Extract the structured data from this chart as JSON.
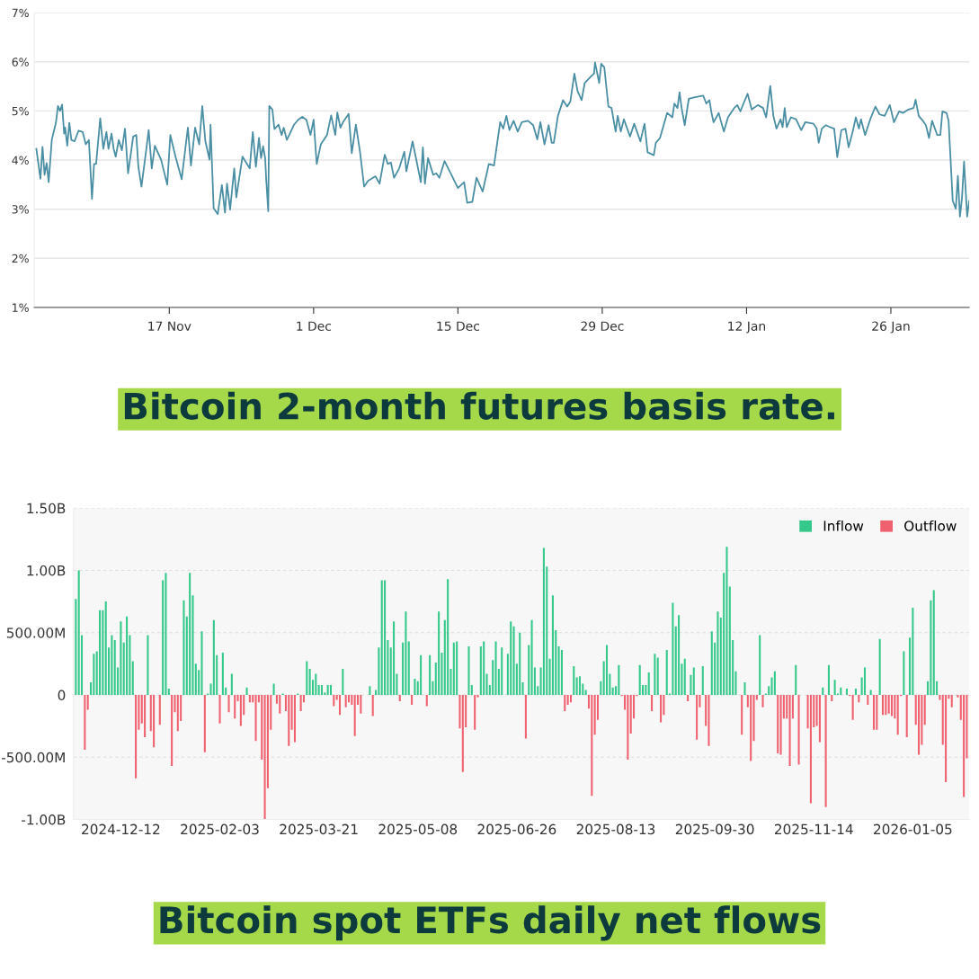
{
  "chart_data": [
    {
      "type": "line",
      "title": "Bitcoin 2-month futures basis rate.",
      "xlim": [
        "2025-11-03T21:36",
        "2026-02-02T14:24"
      ],
      "ylim": [
        1,
        7
      ],
      "xticks": [
        {
          "value": "2025-11-17",
          "label": "17 Nov"
        },
        {
          "value": "2025-12-01",
          "label": "1 Dec"
        },
        {
          "value": "2025-12-15",
          "label": "15 Dec"
        },
        {
          "value": "2025-12-29",
          "label": "29 Dec"
        },
        {
          "value": "2026-01-12",
          "label": "12 Jan"
        },
        {
          "value": "2026-01-26",
          "label": "26 Jan"
        }
      ],
      "yticks": [
        {
          "value": 1,
          "label": "1%"
        },
        {
          "value": 2,
          "label": "2%"
        },
        {
          "value": 3,
          "label": "3%"
        },
        {
          "value": 4,
          "label": "4%"
        },
        {
          "value": 5,
          "label": "5%"
        },
        {
          "value": 6,
          "label": "6%"
        },
        {
          "value": 7,
          "label": "7%"
        }
      ],
      "grid": "y",
      "line_style": "solid",
      "marker": "none",
      "series": [
        {
          "color": "#4a8fa3",
          "x": [
            "2025-11-04T02:24",
            "2025-11-04T12:00",
            "2025-11-04T16:48",
            "2025-11-04T21:36",
            "2025-11-05T02:24",
            "2025-11-05T07:12",
            "2025-11-05T14:24",
            "2025-11-06T00:00",
            "2025-11-06T04:48",
            "2025-11-06T09:36",
            "2025-11-06T14:24",
            "2025-11-06T19:12",
            "2025-11-06T21:36",
            "2025-11-07T02:24",
            "2025-11-07T07:12",
            "2025-11-07T12:00",
            "2025-11-07T19:12",
            "2025-11-08T04:48",
            "2025-11-08T14:24",
            "2025-11-08T21:36",
            "2025-11-09T04:48",
            "2025-11-09T12:00",
            "2025-11-09T16:48",
            "2025-11-09T21:36",
            "2025-11-10T07:12",
            "2025-11-10T14:24",
            "2025-11-10T21:36",
            "2025-11-11T02:24",
            "2025-11-11T09:36",
            "2025-11-11T14:24",
            "2025-11-11T19:12",
            "2025-11-12T02:24",
            "2025-11-12T09:36",
            "2025-11-12T16:48",
            "2025-11-13T00:00",
            "2025-11-13T12:00",
            "2025-11-13T19:12",
            "2025-11-14T00:00",
            "2025-11-14T07:12",
            "2025-11-14T16:48",
            "2025-11-15T00:00",
            "2025-11-15T07:12",
            "2025-11-15T14:24",
            "2025-11-16T04:48",
            "2025-11-16T19:12",
            "2025-11-17T02:24",
            "2025-11-17T14:24",
            "2025-11-18T04:48",
            "2025-11-18T19:12",
            "2025-11-19T02:24",
            "2025-11-19T12:00",
            "2025-11-19T21:36",
            "2025-11-20T04:48",
            "2025-11-20T12:00",
            "2025-11-20T21:36",
            "2025-11-21T00:00",
            "2025-11-21T07:12",
            "2025-11-21T16:48",
            "2025-11-22T02:24",
            "2025-11-22T09:36",
            "2025-11-22T14:24",
            "2025-11-22T21:36",
            "2025-11-23T07:12",
            "2025-11-23T12:00",
            "2025-11-24T02:24",
            "2025-11-24T19:12",
            "2025-11-25T02:24",
            "2025-11-25T09:36",
            "2025-11-25T16:48",
            "2025-11-25T21:36",
            "2025-11-26T02:24",
            "2025-11-26T07:12",
            "2025-11-26T09:36",
            "2025-11-26T14:24",
            "2025-11-26T16:48",
            "2025-11-27T00:00",
            "2025-11-27T04:48",
            "2025-11-27T14:24",
            "2025-11-27T21:36",
            "2025-11-28T02:24",
            "2025-11-28T09:36",
            "2025-11-28T16:48",
            "2025-11-29T02:24",
            "2025-11-29T12:00",
            "2025-11-29T21:36",
            "2025-11-30T07:12",
            "2025-11-30T16:48",
            "2025-12-01T00:00",
            "2025-12-01T07:12",
            "2025-12-01T16:48",
            "2025-12-02T07:12",
            "2025-12-02T16:48",
            "2025-12-03T02:24",
            "2025-12-03T07:12",
            "2025-12-03T14:24",
            "2025-12-03T21:36",
            "2025-12-04T09:36",
            "2025-12-04T16:48",
            "2025-12-05T02:24",
            "2025-12-05T12:00",
            "2025-12-05T21:36",
            "2025-12-06T07:12",
            "2025-12-07T00:00",
            "2025-12-07T09:36",
            "2025-12-07T21:36",
            "2025-12-08T04:48",
            "2025-12-08T12:00",
            "2025-12-08T19:12",
            "2025-12-09T07:12",
            "2025-12-09T19:12",
            "2025-12-10T00:00",
            "2025-12-10T14:24",
            "2025-12-11T09:36",
            "2025-12-11T14:24",
            "2025-12-11T19:12",
            "2025-12-12T02:24",
            "2025-12-12T14:24",
            "2025-12-12T21:36",
            "2025-12-13T04:48",
            "2025-12-13T16:48",
            "2025-12-14T07:12",
            "2025-12-15T00:00",
            "2025-12-15T14:24",
            "2025-12-15T21:36",
            "2025-12-16T09:36",
            "2025-12-16T19:12",
            "2025-12-17T09:36",
            "2025-12-18T00:00",
            "2025-12-18T12:00",
            "2025-12-19T02:24",
            "2025-12-19T09:36",
            "2025-12-19T16:48",
            "2025-12-20T00:00",
            "2025-12-20T09:36",
            "2025-12-20T19:12",
            "2025-12-21T04:48",
            "2025-12-21T19:12",
            "2025-12-22T07:12",
            "2025-12-22T16:48",
            "2025-12-23T00:00",
            "2025-12-23T09:36",
            "2025-12-23T19:12",
            "2025-12-24T02:24",
            "2025-12-24T07:12",
            "2025-12-24T16:48",
            "2025-12-25T04:48",
            "2025-12-25T14:24",
            "2025-12-25T21:36",
            "2025-12-26T07:12",
            "2025-12-26T14:24",
            "2025-12-27T00:00",
            "2025-12-27T07:12",
            "2025-12-27T21:36",
            "2025-12-28T04:48",
            "2025-12-28T07:12",
            "2025-12-28T16:48",
            "2025-12-28T21:36",
            "2025-12-29T04:48",
            "2025-12-29T14:24",
            "2025-12-29T21:36",
            "2025-12-30T07:12",
            "2025-12-30T12:00",
            "2025-12-30T19:12",
            "2025-12-31T02:24",
            "2025-12-31T16:48",
            "2026-01-01T02:24",
            "2026-01-01T16:48",
            "2026-01-02T02:24",
            "2026-01-02T09:36",
            "2026-01-03T00:00",
            "2026-01-03T04:48",
            "2026-01-03T14:24",
            "2026-01-04T07:12",
            "2026-01-04T19:12",
            "2026-01-05T00:00",
            "2026-01-05T07:12",
            "2026-01-05T12:00",
            "2026-01-05T16:48",
            "2026-01-06T00:00",
            "2026-01-06T09:36",
            "2026-01-07T00:00",
            "2026-01-07T19:12",
            "2026-01-08T02:24",
            "2026-01-08T09:36",
            "2026-01-08T14:24",
            "2026-01-08T19:12",
            "2026-01-09T07:12",
            "2026-01-09T12:00",
            "2026-01-09T19:12",
            "2026-01-10T04:48",
            "2026-01-10T19:12",
            "2026-01-11T02:24",
            "2026-01-11T09:36",
            "2026-01-11T16:48",
            "2026-01-12T02:24",
            "2026-01-12T12:00",
            "2026-01-13T02:24",
            "2026-01-13T14:24",
            "2026-01-13T21:36",
            "2026-01-14T07:12",
            "2026-01-14T14:24",
            "2026-01-14T21:36",
            "2026-01-15T07:12",
            "2026-01-15T12:00",
            "2026-01-15T16:48",
            "2026-01-15T21:36",
            "2026-01-16T07:12",
            "2026-01-16T19:12",
            "2026-01-17T07:12",
            "2026-01-17T16:48",
            "2026-01-18T12:00",
            "2026-01-18T19:12",
            "2026-01-19T00:00",
            "2026-01-19T07:12",
            "2026-01-19T16:48",
            "2026-01-20T02:24",
            "2026-01-20T12:00",
            "2026-01-20T19:12",
            "2026-01-21T04:48",
            "2026-01-21T14:24",
            "2026-01-21T21:36",
            "2026-01-22T07:12",
            "2026-01-22T14:24",
            "2026-01-22T21:36",
            "2026-01-23T02:24",
            "2026-01-23T12:00",
            "2026-01-24T00:00",
            "2026-01-24T12:00",
            "2026-01-24T21:36",
            "2026-01-25T09:36",
            "2026-01-25T21:36",
            "2026-01-26T07:12",
            "2026-01-26T19:12",
            "2026-01-27T04:48",
            "2026-01-27T16:48",
            "2026-01-28T04:48",
            "2026-01-28T09:36",
            "2026-01-28T16:48",
            "2026-01-29T02:24",
            "2026-01-29T09:36",
            "2026-01-29T16:48",
            "2026-01-30T00:00",
            "2026-01-30T12:00",
            "2026-01-30T19:12",
            "2026-01-31T00:00",
            "2026-01-31T09:36",
            "2026-01-31T14:24",
            "2026-02-01T00:00",
            "2026-02-01T07:12",
            "2026-02-01T12:00",
            "2026-02-01T16:48",
            "2026-02-01T21:36",
            "2026-02-02T02:24",
            "2026-02-02T09:36",
            "2026-02-02T14:24"
          ],
          "values": [
            4.23,
            3.62,
            4.27,
            3.7,
            3.94,
            3.55,
            4.41,
            4.76,
            5.1,
            5.0,
            5.13,
            4.54,
            4.66,
            4.29,
            4.76,
            4.41,
            4.38,
            4.6,
            4.57,
            4.32,
            4.41,
            3.21,
            3.92,
            3.92,
            4.85,
            4.23,
            4.57,
            4.23,
            4.54,
            4.23,
            4.07,
            4.41,
            4.2,
            4.64,
            3.73,
            4.48,
            4.51,
            3.86,
            3.46,
            4.11,
            4.61,
            3.83,
            4.29,
            4.01,
            3.5,
            4.51,
            4.07,
            3.61,
            4.66,
            3.89,
            4.66,
            4.32,
            5.1,
            4.38,
            4.01,
            4.72,
            3.02,
            2.9,
            3.49,
            2.93,
            3.52,
            2.99,
            3.83,
            3.24,
            4.07,
            3.83,
            4.57,
            3.86,
            4.45,
            4.04,
            4.28,
            4.04,
            3.61,
            2.96,
            5.1,
            5.03,
            4.63,
            4.72,
            4.51,
            4.66,
            4.41,
            4.54,
            4.72,
            4.82,
            4.88,
            4.82,
            4.51,
            4.82,
            3.92,
            4.32,
            4.51,
            4.91,
            4.51,
            4.97,
            4.66,
            4.79,
            4.94,
            4.14,
            4.72,
            4.17,
            3.46,
            3.58,
            3.67,
            3.52,
            4.11,
            3.92,
            3.95,
            3.64,
            3.83,
            4.17,
            3.77,
            4.38,
            3.55,
            4.26,
            3.52,
            4.04,
            3.7,
            3.73,
            3.64,
            3.98,
            3.73,
            3.43,
            3.55,
            3.13,
            3.15,
            3.64,
            3.36,
            3.92,
            3.89,
            4.77,
            4.64,
            4.9,
            4.61,
            4.8,
            4.58,
            4.77,
            4.8,
            4.71,
            4.42,
            4.77,
            4.32,
            4.71,
            4.35,
            4.35,
            4.9,
            5.22,
            5.09,
            5.19,
            5.76,
            5.41,
            5.22,
            5.57,
            5.7,
            5.76,
            5.99,
            5.57,
            5.96,
            5.89,
            5.09,
            5.06,
            4.58,
            4.9,
            4.58,
            4.83,
            4.48,
            4.74,
            4.38,
            4.74,
            4.16,
            4.1,
            4.35,
            4.45,
            4.96,
            4.87,
            5.15,
            5.06,
            5.38,
            5.06,
            4.71,
            5.25,
            5.28,
            5.31,
            5.15,
            5.22,
            4.96,
            4.77,
            4.96,
            4.8,
            4.58,
            4.87,
            5.06,
            5.12,
            4.99,
            5.15,
            5.35,
            5.03,
            5.12,
            5.06,
            4.87,
            5.51,
            4.9,
            4.64,
            4.83,
            4.67,
            5.06,
            4.67,
            4.87,
            4.83,
            4.61,
            4.77,
            4.74,
            4.64,
            4.35,
            4.64,
            4.71,
            4.67,
            4.64,
            4.06,
            4.61,
            4.64,
            4.26,
            4.58,
            4.87,
            4.64,
            4.83,
            4.51,
            4.83,
            5.09,
            4.93,
            4.9,
            5.12,
            4.77,
            4.99,
            4.96,
            5.03,
            5.06,
            5.23,
            4.9,
            4.8,
            4.71,
            4.45,
            4.8,
            4.51,
            4.51,
            4.99,
            4.96,
            4.8,
            3.17,
            3.01,
            3.68,
            2.85,
            3.23,
            3.97,
            2.85,
            3.17
          ]
        }
      ]
    },
    {
      "type": "bar",
      "title": "Bitcoin spot ETFs daily net flows",
      "ylim": [
        -1000000000.0,
        1500000000.0
      ],
      "yticks": [
        {
          "value": -1000000000.0,
          "label": "-1.00B"
        },
        {
          "value": -500000000.0,
          "label": "-500.00M"
        },
        0,
        {
          "value": 500000000.0,
          "label": "500.00M"
        },
        {
          "value": 1000000000.0,
          "label": "1.00B"
        },
        {
          "value": 1500000000.0,
          "label": "1.50B"
        }
      ],
      "grid": "y",
      "legend": "top right",
      "categories": [
        null,
        null,
        null,
        null,
        null,
        null,
        null,
        null,
        null,
        null,
        null,
        null,
        null,
        null,
        null,
        "2024-12-12",
        null,
        null,
        null,
        null,
        null,
        null,
        null,
        null,
        null,
        null,
        null,
        null,
        null,
        null,
        null,
        null,
        null,
        null,
        null,
        null,
        null,
        null,
        null,
        null,
        null,
        null,
        null,
        null,
        null,
        null,
        null,
        null,
        "2025-02-03",
        null,
        null,
        null,
        null,
        null,
        null,
        null,
        null,
        null,
        null,
        null,
        null,
        null,
        null,
        null,
        null,
        null,
        null,
        null,
        null,
        null,
        null,
        null,
        null,
        null,
        null,
        null,
        null,
        null,
        null,
        null,
        null,
        "2025-03-21",
        null,
        null,
        null,
        null,
        null,
        null,
        null,
        null,
        null,
        null,
        null,
        null,
        null,
        null,
        null,
        null,
        null,
        null,
        null,
        null,
        null,
        null,
        null,
        null,
        null,
        null,
        null,
        null,
        null,
        null,
        null,
        null,
        "2025-05-08",
        null,
        null,
        null,
        null,
        null,
        null,
        null,
        null,
        null,
        null,
        null,
        null,
        null,
        null,
        null,
        null,
        null,
        null,
        null,
        null,
        null,
        null,
        null,
        null,
        null,
        null,
        null,
        null,
        null,
        null,
        null,
        null,
        "2025-06-26",
        null,
        null,
        null,
        null,
        null,
        null,
        null,
        null,
        null,
        null,
        null,
        null,
        null,
        null,
        null,
        null,
        null,
        null,
        null,
        null,
        null,
        null,
        null,
        null,
        null,
        null,
        null,
        null,
        null,
        null,
        null,
        null,
        "2025-08-13",
        null,
        null,
        null,
        null,
        null,
        null,
        null,
        null,
        null,
        null,
        null,
        null,
        null,
        null,
        null,
        null,
        null,
        null,
        null,
        null,
        null,
        null,
        null,
        null,
        null,
        null,
        null,
        null,
        null,
        null,
        null,
        null,
        "2025-09-30",
        null,
        null,
        null,
        null,
        null,
        null,
        null,
        null,
        null,
        null,
        null,
        null,
        null,
        null,
        null,
        null,
        null,
        null,
        null,
        null,
        null,
        null,
        null,
        null,
        null,
        null,
        null,
        null,
        null,
        null,
        null,
        null,
        "2025-11-14",
        null,
        null,
        null,
        null,
        null,
        null,
        null,
        null,
        null,
        null,
        null,
        null,
        null,
        null,
        null,
        null,
        null,
        null,
        null,
        null,
        null,
        null,
        null,
        null,
        null,
        null,
        null,
        null,
        null,
        null,
        null,
        null,
        "2026-01-05",
        null,
        null,
        null,
        null,
        null,
        null,
        null,
        null,
        null,
        null,
        null,
        null,
        null,
        null,
        null,
        null,
        null,
        null
      ],
      "series": [
        {
          "name": "Inflow",
          "color": "#34c98a",
          "values": [
            770000000.0,
            1000000000.0,
            480000000.0,
            null,
            null,
            100000000.0,
            330000000.0,
            350000000.0,
            680000000.0,
            680000000.0,
            750000000.0,
            380000000.0,
            480000000.0,
            440000000.0,
            220000000.0,
            590000000.0,
            420000000.0,
            630000000.0,
            480000000.0,
            270000000.0,
            null,
            null,
            null,
            null,
            480000000.0,
            null,
            null,
            null,
            null,
            920000000.0,
            980000000.0,
            50000000.0,
            null,
            null,
            null,
            null,
            760000000.0,
            630000000.0,
            980000000.0,
            800000000.0,
            250000000.0,
            200000000.0,
            510000000.0,
            null,
            10000000.0,
            90000000.0,
            600000000.0,
            320000000.0,
            null,
            340000000.0,
            60000000.0,
            null,
            170000000.0,
            null,
            null,
            null,
            null,
            60000000.0,
            null,
            null,
            null,
            null,
            null,
            null,
            null,
            null,
            90000000.0,
            null,
            null,
            10000000.0,
            null,
            null,
            null,
            null,
            10000000.0,
            null,
            null,
            270000000.0,
            210000000.0,
            120000000.0,
            170000000.0,
            80000000.0,
            80000000.0,
            20000000.0,
            80000000.0,
            80000000.0,
            null,
            null,
            null,
            210000000.0,
            null,
            null,
            null,
            null,
            null,
            null,
            null,
            null,
            70000000.0,
            null,
            40000000.0,
            380000000.0,
            920000000.0,
            920000000.0,
            440000000.0,
            380000000.0,
            590000000.0,
            170000000.0,
            null,
            420000000.0,
            670000000.0,
            430000000.0,
            null,
            130000000.0,
            110000000.0,
            320000000.0,
            null,
            null,
            320000000.0,
            110000000.0,
            260000000.0,
            670000000.0,
            340000000.0,
            600000000.0,
            930000000.0,
            210000000.0,
            420000000.0,
            430000000.0,
            null,
            null,
            null,
            390000000.0,
            80000000.0,
            null,
            null,
            390000000.0,
            430000000.0,
            170000000.0,
            80000000.0,
            280000000.0,
            430000000.0,
            210000000.0,
            380000000.0,
            null,
            330000000.0,
            590000000.0,
            550000000.0,
            250000000.0,
            500000000.0,
            100000000.0,
            null,
            400000000.0,
            600000000.0,
            220000000.0,
            70000000.0,
            220000000.0,
            1180000000.0,
            1030000000.0,
            290000000.0,
            800000000.0,
            520000000.0,
            390000000.0,
            360000000.0,
            null,
            null,
            null,
            230000000.0,
            140000000.0,
            150000000.0,
            90000000.0,
            40000000.0,
            null,
            null,
            null,
            null,
            110000000.0,
            270000000.0,
            400000000.0,
            170000000.0,
            60000000.0,
            70000000.0,
            240000000.0,
            null,
            null,
            null,
            null,
            null,
            null,
            240000000.0,
            80000000.0,
            80000000.0,
            180000000.0,
            null,
            330000000.0,
            300000000.0,
            null,
            null,
            360000000.0,
            10000000.0,
            740000000.0,
            550000000.0,
            640000000.0,
            250000000.0,
            290000000.0,
            null,
            160000000.0,
            220000000.0,
            null,
            null,
            230000000.0,
            null,
            null,
            510000000.0,
            420000000.0,
            670000000.0,
            620000000.0,
            980000000.0,
            1190000000.0,
            870000000.0,
            440000000.0,
            190000000.0,
            null,
            null,
            100000000.0,
            null,
            null,
            null,
            null,
            480000000.0,
            null,
            10000000.0,
            70000000.0,
            140000000.0,
            190000000.0,
            null,
            null,
            null,
            null,
            null,
            null,
            240000000.0,
            null,
            null,
            null,
            null,
            null,
            null,
            null,
            null,
            60000000.0,
            null,
            240000000.0,
            null,
            120000000.0,
            10000000.0,
            60000000.0,
            null,
            50000000.0,
            null,
            null,
            50000000.0,
            null,
            140000000.0,
            220000000.0,
            null,
            40000000.0,
            null,
            null,
            450000000.0,
            null,
            null,
            null,
            null,
            null,
            null,
            null,
            350000000.0,
            null,
            460000000.0,
            700000000.0,
            null,
            null,
            null,
            null,
            110000000.0,
            760000000.0,
            840000000.0,
            110000000.0,
            null,
            null,
            null,
            null,
            null,
            null,
            null,
            null,
            null,
            null
          ]
        },
        {
          "name": "Outflow",
          "color": "#f0616f",
          "values": [
            null,
            null,
            null,
            -440000000.0,
            -120000000.0,
            null,
            null,
            null,
            null,
            null,
            null,
            null,
            null,
            null,
            null,
            null,
            null,
            null,
            null,
            null,
            -670000000.0,
            -280000000.0,
            -230000000.0,
            -340000000.0,
            null,
            -290000000.0,
            -420000000.0,
            null,
            -240000000.0,
            null,
            null,
            null,
            -570000000.0,
            -140000000.0,
            -290000000.0,
            -210000000.0,
            null,
            null,
            null,
            null,
            null,
            null,
            null,
            -460000000.0,
            null,
            null,
            null,
            null,
            -230000000.0,
            null,
            null,
            -140000000.0,
            null,
            -190000000.0,
            -50000000.0,
            -250000000.0,
            -160000000.0,
            null,
            -60000000.0,
            -60000000.0,
            -370000000.0,
            -60000000.0,
            -520000000.0,
            -1000000000.0,
            -750000000.0,
            -280000000.0,
            null,
            -70000000.0,
            -150000000.0,
            null,
            -130000000.0,
            -410000000.0,
            -280000000.0,
            -380000000.0,
            null,
            -130000000.0,
            -60000000.0,
            null,
            null,
            null,
            null,
            null,
            null,
            null,
            null,
            null,
            -90000000.0,
            -40000000.0,
            -160000000.0,
            null,
            -100000000.0,
            -60000000.0,
            -80000000.0,
            -330000000.0,
            -80000000.0,
            -150000000.0,
            null,
            null,
            null,
            -170000000.0,
            null,
            null,
            null,
            null,
            null,
            null,
            null,
            null,
            -50000000.0,
            null,
            null,
            null,
            -80000000.0,
            null,
            null,
            null,
            null,
            -90000000.0,
            null,
            null,
            null,
            null,
            null,
            null,
            null,
            null,
            null,
            null,
            -270000000.0,
            -620000000.0,
            -260000000.0,
            null,
            null,
            -280000000.0,
            -20000000.0,
            null,
            null,
            null,
            null,
            null,
            null,
            null,
            null,
            null,
            null,
            null,
            null,
            null,
            null,
            null,
            -350000000.0,
            null,
            null,
            null,
            null,
            null,
            null,
            null,
            null,
            null,
            null,
            null,
            null,
            -130000000.0,
            -80000000.0,
            -60000000.0,
            null,
            null,
            null,
            null,
            null,
            -110000000.0,
            -810000000.0,
            -320000000.0,
            -200000000.0,
            null,
            null,
            null,
            null,
            null,
            null,
            null,
            -10000000.0,
            -120000000.0,
            -520000000.0,
            -310000000.0,
            -190000000.0,
            -10000000.0,
            null,
            null,
            null,
            null,
            -130000000.0,
            null,
            null,
            -220000000.0,
            -160000000.0,
            null,
            null,
            null,
            null,
            null,
            null,
            null,
            -50000000.0,
            null,
            null,
            -360000000.0,
            -100000000.0,
            null,
            -250000000.0,
            -410000000.0,
            null,
            null,
            null,
            null,
            null,
            null,
            null,
            null,
            null,
            null,
            -320000000.0,
            null,
            -100000000.0,
            -530000000.0,
            -370000000.0,
            -40000000.0,
            null,
            -100000000.0,
            null,
            null,
            null,
            null,
            -470000000.0,
            -480000000.0,
            -190000000.0,
            -190000000.0,
            -570000000.0,
            -190000000.0,
            null,
            -560000000.0,
            null,
            null,
            -270000000.0,
            -870000000.0,
            -260000000.0,
            -250000000.0,
            -380000000.0,
            null,
            -900000000.0,
            null,
            -50000000.0,
            null,
            null,
            null,
            null,
            null,
            -10000000.0,
            -200000000.0,
            null,
            -60000000.0,
            null,
            null,
            -80000000.0,
            null,
            -280000000.0,
            -280000000.0,
            null,
            -160000000.0,
            -160000000.0,
            -150000000.0,
            -170000000.0,
            -190000000.0,
            -320000000.0,
            -10000000.0,
            null,
            -340000000.0,
            null,
            null,
            -240000000.0,
            -480000000.0,
            -400000000.0,
            -240000000.0,
            null,
            null,
            null,
            null,
            -40000000.0,
            -400000000.0,
            -700000000.0,
            -30000000.0,
            -100000000.0,
            null,
            -20000000.0,
            -200000000.0,
            -820000000.0,
            -510000000.0
          ]
        }
      ]
    }
  ]
}
